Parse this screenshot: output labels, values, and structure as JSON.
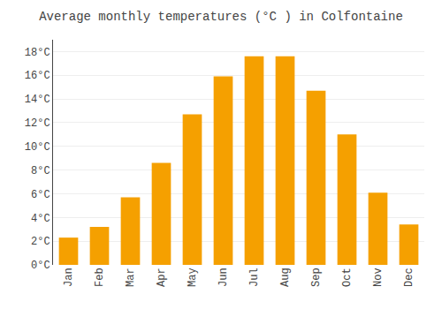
{
  "chart_data": {
    "type": "bar",
    "title": "Average monthly temperatures (°C ) in Colfontaine",
    "categories": [
      "Jan",
      "Feb",
      "Mar",
      "Apr",
      "May",
      "Jun",
      "Jul",
      "Aug",
      "Sep",
      "Oct",
      "Nov",
      "Dec"
    ],
    "values": [
      2.3,
      3.2,
      5.7,
      8.6,
      12.7,
      15.9,
      17.6,
      17.6,
      14.7,
      11.0,
      6.1,
      3.4
    ],
    "color": "#F5A000",
    "ylim": [
      0,
      19
    ],
    "yticks": [
      {
        "value": 0,
        "label": "0°C"
      },
      {
        "value": 2,
        "label": "2°C"
      },
      {
        "value": 4,
        "label": "4°C"
      },
      {
        "value": 6,
        "label": "6°C"
      },
      {
        "value": 8,
        "label": "8°C"
      },
      {
        "value": 10,
        "label": "10°C"
      },
      {
        "value": 12,
        "label": "12°C"
      },
      {
        "value": 14,
        "label": "14°C"
      },
      {
        "value": 16,
        "label": "16°C"
      },
      {
        "value": 18,
        "label": "18°C"
      }
    ],
    "grid": true
  }
}
